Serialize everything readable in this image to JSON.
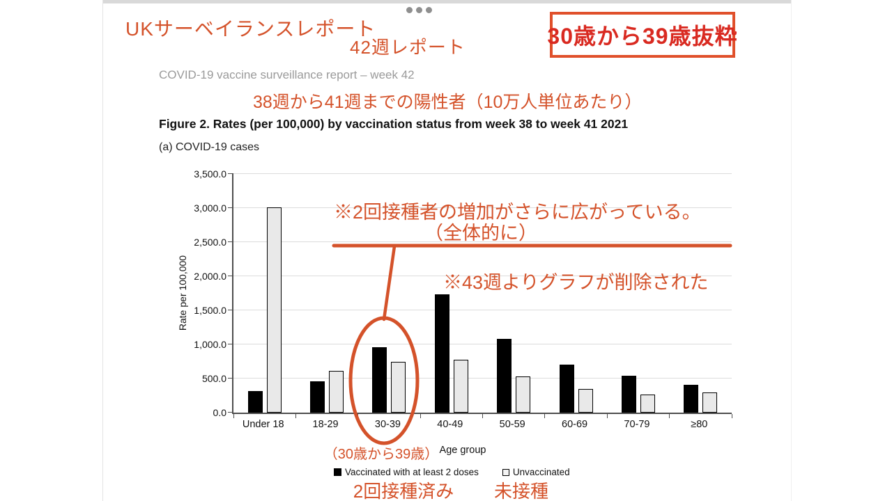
{
  "page": {
    "title_jp": "UKサーベイランスレポート",
    "week_label_jp": "42週レポート",
    "highlight_box_label": "30歳から39歳抜粋",
    "report_subtitle": "COVID-19 vaccine surveillance report – week 42",
    "heading_jp": "38週から41週までの陽性者（10万人単位あたり）",
    "figure_title": "Figure 2. Rates (per 100,000) by vaccination status from week 38 to week 41 2021",
    "panel_label": "(a) COVID-19 cases"
  },
  "annotations": {
    "note1_line1": "※2回接種者の増加がさらに広がっている。",
    "note1_line2": "（全体的に）",
    "note2": "※43週よりグラフが削除された",
    "oval_label": "（30歳から39歳）",
    "legend_jp_vaccinated": "2回接種済み",
    "legend_jp_unvaccinated": "未接種"
  },
  "icons": {
    "ellipsis_menu": "three-dots"
  },
  "colors": {
    "annotation_orange": "#d4522a",
    "highlight_text_red": "#d92a21",
    "highlight_border": "#e0502b",
    "bar_black": "#000000",
    "bar_gray_fill": "#e9e9e9",
    "gridline": "#dcdcdc",
    "subtitle_gray": "#9a9a9a"
  },
  "chart_data": {
    "type": "bar",
    "title": "Figure 2. Rates (per 100,000) by vaccination status from week 38 to week 41 2021",
    "panel": "(a) COVID-19 cases",
    "categories": [
      "Under 18",
      "18-29",
      "30-39",
      "40-49",
      "50-59",
      "60-69",
      "70-79",
      "≥80"
    ],
    "series": [
      {
        "name": "Vaccinated with at least 2 doses",
        "color": "#000000",
        "values": [
          320,
          455,
          955,
          1730,
          1080,
          700,
          540,
          410
        ]
      },
      {
        "name": "Unvaccinated",
        "color": "#e9e9e9",
        "values": [
          3010,
          615,
          750,
          775,
          530,
          350,
          270,
          300
        ]
      }
    ],
    "xlabel": "Age group",
    "ylabel": "Rate per 100,000",
    "ylim": [
      0,
      3500
    ],
    "ytick_step": 500,
    "ytick_labels": [
      "0.0",
      "500.0",
      "1,000.0",
      "1,500.0",
      "2,000.0",
      "2,500.0",
      "3,000.0",
      "3,500.0"
    ],
    "grid": true,
    "legend_position": "bottom"
  }
}
